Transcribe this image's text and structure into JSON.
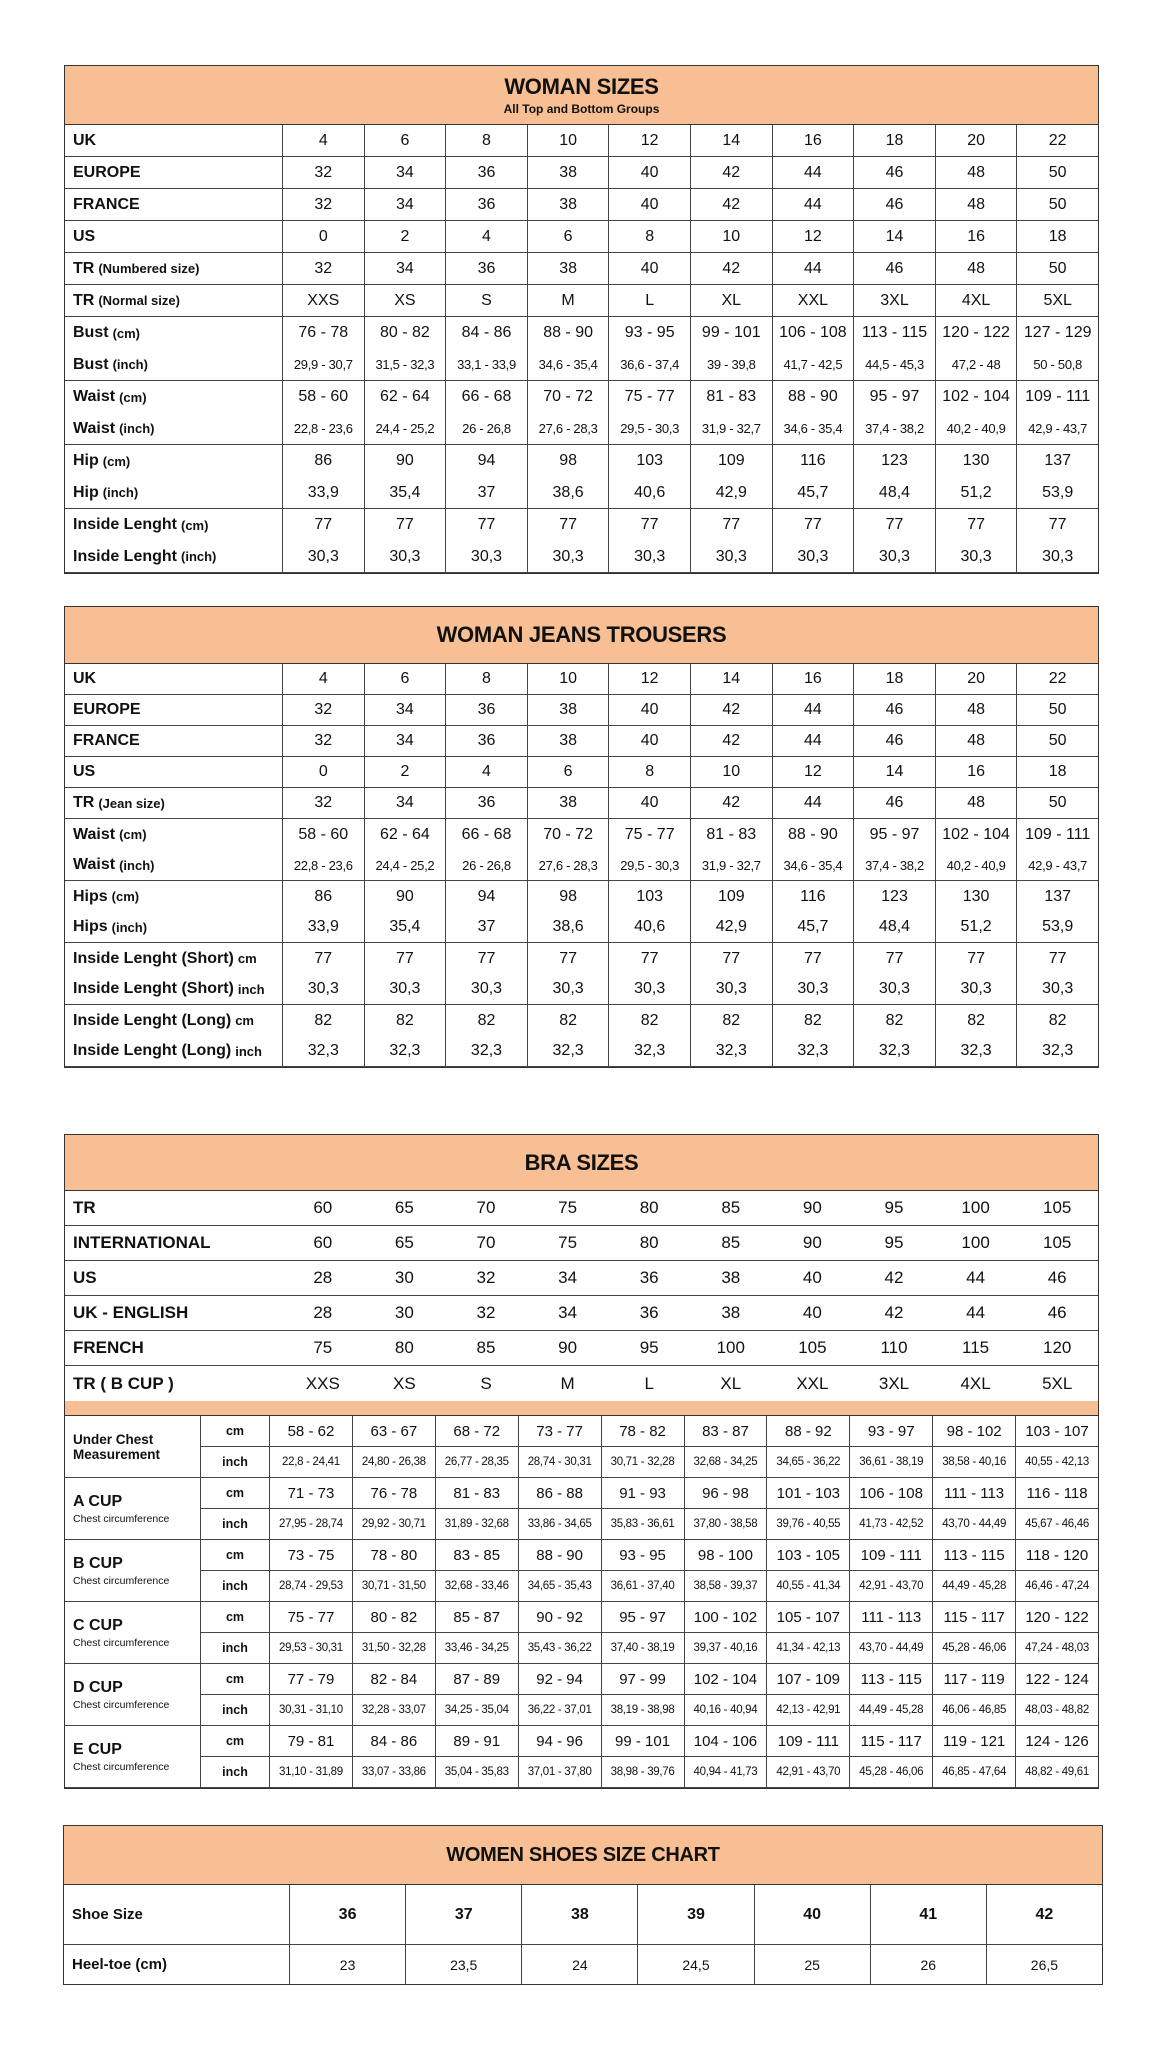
{
  "woman_sizes": {
    "title": "WOMAN SIZES",
    "subtitle": "All Top and Bottom Groups",
    "groups": [
      [
        {
          "label": "UK",
          "unit": "",
          "values": [
            "4",
            "6",
            "8",
            "10",
            "12",
            "14",
            "16",
            "18",
            "20",
            "22"
          ]
        }
      ],
      [
        {
          "label": "EUROPE",
          "unit": "",
          "values": [
            "32",
            "34",
            "36",
            "38",
            "40",
            "42",
            "44",
            "46",
            "48",
            "50"
          ]
        }
      ],
      [
        {
          "label": "FRANCE",
          "unit": "",
          "values": [
            "32",
            "34",
            "36",
            "38",
            "40",
            "42",
            "44",
            "46",
            "48",
            "50"
          ]
        }
      ],
      [
        {
          "label": "US",
          "unit": "",
          "values": [
            "0",
            "2",
            "4",
            "6",
            "8",
            "10",
            "12",
            "14",
            "16",
            "18"
          ]
        }
      ],
      [
        {
          "label": "TR",
          "unit": "(Numbered size)",
          "values": [
            "32",
            "34",
            "36",
            "38",
            "40",
            "42",
            "44",
            "46",
            "48",
            "50"
          ]
        }
      ],
      [
        {
          "label": "TR",
          "unit": "(Normal size)",
          "values": [
            "XXS",
            "XS",
            "S",
            "M",
            "L",
            "XL",
            "XXL",
            "3XL",
            "4XL",
            "5XL"
          ]
        }
      ],
      [
        {
          "label": "Bust",
          "unit": "(cm)",
          "values": [
            "76 - 78",
            "80 - 82",
            "84 - 86",
            "88 - 90",
            "93 - 95",
            "99 - 101",
            "106 - 108",
            "113 - 115",
            "120 - 122",
            "127 - 129"
          ]
        },
        {
          "label": "Bust",
          "unit": "(inch)",
          "small": true,
          "values": [
            "29,9 - 30,7",
            "31,5 - 32,3",
            "33,1 - 33,9",
            "34,6 - 35,4",
            "36,6 - 37,4",
            "39 - 39,8",
            "41,7 - 42,5",
            "44,5 - 45,3",
            "47,2 - 48",
            "50 - 50,8"
          ]
        }
      ],
      [
        {
          "label": "Waist",
          "unit": "(cm)",
          "values": [
            "58 - 60",
            "62 - 64",
            "66 - 68",
            "70 - 72",
            "75 - 77",
            "81 - 83",
            "88 - 90",
            "95 - 97",
            "102 - 104",
            "109 - 111"
          ]
        },
        {
          "label": "Waist",
          "unit": "(inch)",
          "small": true,
          "values": [
            "22,8 - 23,6",
            "24,4 - 25,2",
            "26 - 26,8",
            "27,6 - 28,3",
            "29,5 - 30,3",
            "31,9 - 32,7",
            "34,6 - 35,4",
            "37,4 - 38,2",
            "40,2 - 40,9",
            "42,9 - 43,7"
          ]
        }
      ],
      [
        {
          "label": "Hip",
          "unit": "(cm)",
          "values": [
            "86",
            "90",
            "94",
            "98",
            "103",
            "109",
            "116",
            "123",
            "130",
            "137"
          ]
        },
        {
          "label": "Hip",
          "unit": "(inch)",
          "values": [
            "33,9",
            "35,4",
            "37",
            "38,6",
            "40,6",
            "42,9",
            "45,7",
            "48,4",
            "51,2",
            "53,9"
          ]
        }
      ],
      [
        {
          "label": "Inside Lenght",
          "unit": "(cm)",
          "values": [
            "77",
            "77",
            "77",
            "77",
            "77",
            "77",
            "77",
            "77",
            "77",
            "77"
          ]
        },
        {
          "label": "Inside Lenght",
          "unit": "(inch)",
          "values": [
            "30,3",
            "30,3",
            "30,3",
            "30,3",
            "30,3",
            "30,3",
            "30,3",
            "30,3",
            "30,3",
            "30,3"
          ]
        }
      ]
    ]
  },
  "jeans": {
    "title": "WOMAN JEANS TROUSERS",
    "groups": [
      [
        {
          "label": "UK",
          "unit": "",
          "values": [
            "4",
            "6",
            "8",
            "10",
            "12",
            "14",
            "16",
            "18",
            "20",
            "22"
          ]
        }
      ],
      [
        {
          "label": "EUROPE",
          "unit": "",
          "values": [
            "32",
            "34",
            "36",
            "38",
            "40",
            "42",
            "44",
            "46",
            "48",
            "50"
          ]
        }
      ],
      [
        {
          "label": "FRANCE",
          "unit": "",
          "values": [
            "32",
            "34",
            "36",
            "38",
            "40",
            "42",
            "44",
            "46",
            "48",
            "50"
          ]
        }
      ],
      [
        {
          "label": "US",
          "unit": "",
          "values": [
            "0",
            "2",
            "4",
            "6",
            "8",
            "10",
            "12",
            "14",
            "16",
            "18"
          ]
        }
      ],
      [
        {
          "label": "TR",
          "unit": "(Jean size)",
          "values": [
            "32",
            "34",
            "36",
            "38",
            "40",
            "42",
            "44",
            "46",
            "48",
            "50"
          ]
        }
      ],
      [
        {
          "label": "Waist",
          "unit": "(cm)",
          "values": [
            "58 - 60",
            "62 - 64",
            "66 - 68",
            "70 - 72",
            "75 - 77",
            "81 - 83",
            "88 - 90",
            "95 - 97",
            "102 - 104",
            "109 - 111"
          ]
        },
        {
          "label": "Waist",
          "unit": "(inch)",
          "small": true,
          "values": [
            "22,8 - 23,6",
            "24,4 - 25,2",
            "26 - 26,8",
            "27,6 - 28,3",
            "29,5 - 30,3",
            "31,9 - 32,7",
            "34,6 - 35,4",
            "37,4 - 38,2",
            "40,2 - 40,9",
            "42,9 - 43,7"
          ]
        }
      ],
      [
        {
          "label": "Hips",
          "unit": "(cm)",
          "values": [
            "86",
            "90",
            "94",
            "98",
            "103",
            "109",
            "116",
            "123",
            "130",
            "137"
          ]
        },
        {
          "label": "Hips",
          "unit": "(inch)",
          "values": [
            "33,9",
            "35,4",
            "37",
            "38,6",
            "40,6",
            "42,9",
            "45,7",
            "48,4",
            "51,2",
            "53,9"
          ]
        }
      ],
      [
        {
          "label": "Inside Lenght (Short)",
          "unit": "cm",
          "values": [
            "77",
            "77",
            "77",
            "77",
            "77",
            "77",
            "77",
            "77",
            "77",
            "77"
          ]
        },
        {
          "label": "Inside Lenght (Short)",
          "unit": "inch",
          "values": [
            "30,3",
            "30,3",
            "30,3",
            "30,3",
            "30,3",
            "30,3",
            "30,3",
            "30,3",
            "30,3",
            "30,3"
          ]
        }
      ],
      [
        {
          "label": "Inside Lenght (Long)",
          "unit": "cm",
          "values": [
            "82",
            "82",
            "82",
            "82",
            "82",
            "82",
            "82",
            "82",
            "82",
            "82"
          ]
        },
        {
          "label": "Inside Lenght (Long)",
          "unit": "inch",
          "values": [
            "32,3",
            "32,3",
            "32,3",
            "32,3",
            "32,3",
            "32,3",
            "32,3",
            "32,3",
            "32,3",
            "32,3"
          ]
        }
      ]
    ]
  },
  "bra": {
    "title": "BRA SIZES",
    "rows": [
      {
        "label": "TR",
        "values": [
          "60",
          "65",
          "70",
          "75",
          "80",
          "85",
          "90",
          "95",
          "100",
          "105"
        ]
      },
      {
        "label": "INTERNATIONAL",
        "values": [
          "60",
          "65",
          "70",
          "75",
          "80",
          "85",
          "90",
          "95",
          "100",
          "105"
        ]
      },
      {
        "label": "US",
        "values": [
          "28",
          "30",
          "32",
          "34",
          "36",
          "38",
          "40",
          "42",
          "44",
          "46"
        ]
      },
      {
        "label": "UK - ENGLISH",
        "values": [
          "28",
          "30",
          "32",
          "34",
          "36",
          "38",
          "40",
          "42",
          "44",
          "46"
        ]
      },
      {
        "label": "FRENCH",
        "values": [
          "75",
          "80",
          "85",
          "90",
          "95",
          "100",
          "105",
          "110",
          "115",
          "120"
        ]
      },
      {
        "label": "TR ( B CUP )",
        "values": [
          "XXS",
          "XS",
          "S",
          "M",
          "L",
          "XL",
          "XXL",
          "3XL",
          "4XL",
          "5XL"
        ]
      }
    ],
    "unit_cm": "cm",
    "unit_inch": "inch",
    "cups": [
      {
        "name": "Under Chest Measurement",
        "sub": "",
        "cm": [
          "58 - 62",
          "63 - 67",
          "68 - 72",
          "73 - 77",
          "78 - 82",
          "83 - 87",
          "88 - 92",
          "93 - 97",
          "98 - 102",
          "103 - 107"
        ],
        "inch": [
          "22,8 - 24,41",
          "24,80 - 26,38",
          "26,77 - 28,35",
          "28,74 - 30,31",
          "30,71 - 32,28",
          "32,68 - 34,25",
          "34,65 - 36,22",
          "36,61 - 38,19",
          "38,58 - 40,16",
          "40,55 - 42,13"
        ]
      },
      {
        "name": "A CUP",
        "sub": "Chest circumference",
        "cm": [
          "71 - 73",
          "76 - 78",
          "81 - 83",
          "86 - 88",
          "91 - 93",
          "96 - 98",
          "101 - 103",
          "106 - 108",
          "111 - 113",
          "116 - 118"
        ],
        "inch": [
          "27,95 - 28,74",
          "29,92 - 30,71",
          "31,89 - 32,68",
          "33,86 - 34,65",
          "35,83 - 36,61",
          "37,80 - 38,58",
          "39,76 - 40,55",
          "41,73 - 42,52",
          "43,70 - 44,49",
          "45,67 - 46,46"
        ]
      },
      {
        "name": "B CUP",
        "sub": "Chest circumference",
        "cm": [
          "73 - 75",
          "78 - 80",
          "83 - 85",
          "88 - 90",
          "93 - 95",
          "98 - 100",
          "103 - 105",
          "109 - 111",
          "113 - 115",
          "118 - 120"
        ],
        "inch": [
          "28,74 - 29,53",
          "30,71 - 31,50",
          "32,68 - 33,46",
          "34,65 - 35,43",
          "36,61 - 37,40",
          "38,58 - 39,37",
          "40,55 - 41,34",
          "42,91 - 43,70",
          "44,49 - 45,28",
          "46,46 - 47,24"
        ]
      },
      {
        "name": "C CUP",
        "sub": "Chest circumference",
        "cm": [
          "75 - 77",
          "80 - 82",
          "85 - 87",
          "90 - 92",
          "95 - 97",
          "100 - 102",
          "105 - 107",
          "111 - 113",
          "115 - 117",
          "120 - 122"
        ],
        "inch": [
          "29,53 - 30,31",
          "31,50 - 32,28",
          "33,46 - 34,25",
          "35,43 - 36,22",
          "37,40 - 38,19",
          "39,37 - 40,16",
          "41,34 - 42,13",
          "43,70 - 44,49",
          "45,28 - 46,06",
          "47,24 - 48,03"
        ]
      },
      {
        "name": "D CUP",
        "sub": "Chest circumference",
        "cm": [
          "77 - 79",
          "82 - 84",
          "87 - 89",
          "92 - 94",
          "97 - 99",
          "102 - 104",
          "107 - 109",
          "113 - 115",
          "117 - 119",
          "122 - 124"
        ],
        "inch": [
          "30,31 - 31,10",
          "32,28 - 33,07",
          "34,25 - 35,04",
          "36,22 - 37,01",
          "38,19 - 38,98",
          "40,16 - 40,94",
          "42,13 - 42,91",
          "44,49 - 45,28",
          "46,06 - 46,85",
          "48,03 - 48,82"
        ]
      },
      {
        "name": "E CUP",
        "sub": "Chest circumference",
        "cm": [
          "79 - 81",
          "84 - 86",
          "89 - 91",
          "94 - 96",
          "99 - 101",
          "104 - 106",
          "109 - 111",
          "115 - 117",
          "119 - 121",
          "124 - 126"
        ],
        "inch": [
          "31,10 - 31,89",
          "33,07 - 33,86",
          "35,04 - 35,83",
          "37,01 - 37,80",
          "38,98 - 39,76",
          "40,94 - 41,73",
          "42,91 - 43,70",
          "45,28 - 46,06",
          "46,85 - 47,64",
          "48,82 - 49,61"
        ]
      }
    ]
  },
  "shoes": {
    "title": "WOMEN SHOES SIZE CHART",
    "rows": [
      {
        "label": "Shoe Size",
        "values": [
          "36",
          "37",
          "38",
          "39",
          "40",
          "41",
          "42"
        ]
      },
      {
        "label": "Heel-toe (cm)",
        "values": [
          "23",
          "23,5",
          "24",
          "24,5",
          "25",
          "26",
          "26,5"
        ]
      }
    ]
  },
  "colors": {
    "header_bg": "#f7bf93",
    "border": "#333333"
  }
}
